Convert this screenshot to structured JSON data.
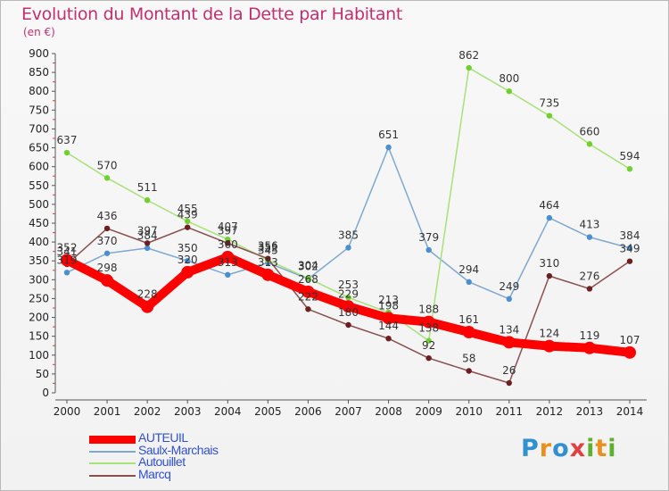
{
  "chart_data": {
    "type": "line",
    "title": "Evolution du Montant de la Dette par Habitant",
    "unit_label": "(en €)",
    "x": [
      "2000",
      "2001",
      "2002",
      "2003",
      "2004",
      "2005",
      "2006",
      "2007",
      "2008",
      "2009",
      "2010",
      "2011",
      "2012",
      "2013",
      "2014"
    ],
    "ylim": [
      0,
      900
    ],
    "yticks": [
      0,
      50,
      100,
      150,
      200,
      250,
      300,
      350,
      400,
      450,
      500,
      550,
      600,
      650,
      700,
      750,
      800,
      850,
      900
    ],
    "grid": false,
    "legend_position": "bottom-left",
    "series": [
      {
        "name": "AUTEUIL",
        "color": "#ff0000",
        "marker_color": "#ff0000",
        "values": [
          352,
          298,
          228,
          320,
          360,
          313,
          268,
          229,
          198,
          188,
          161,
          134,
          124,
          119,
          107
        ]
      },
      {
        "name": "Saulx-Marchais",
        "color": "#7fa8cf",
        "marker_color": "#4a8fd0",
        "values": [
          319,
          370,
          384,
          350,
          313,
          345,
          302,
          385,
          651,
          379,
          294,
          249,
          464,
          413,
          384
        ]
      },
      {
        "name": "Autouillet",
        "color": "#a8e07a",
        "marker_color": "#6fd030",
        "values": [
          637,
          570,
          511,
          455,
          407,
          352,
          304,
          253,
          213,
          138,
          862,
          800,
          735,
          660,
          594
        ]
      },
      {
        "name": "Marcq",
        "color": "#8a5050",
        "marker_color": "#6a2020",
        "values": [
          341,
          436,
          397,
          439,
          397,
          356,
          222,
          180,
          144,
          92,
          58,
          26,
          310,
          276,
          349
        ]
      }
    ]
  },
  "logo": {
    "letters": [
      "P",
      "r",
      "o",
      "x",
      "i",
      "t",
      "i"
    ],
    "colors": [
      "#3090d0",
      "#e89020",
      "#3090d0",
      "#e04040",
      "#60b030",
      "#e89020",
      "#60b030"
    ]
  }
}
